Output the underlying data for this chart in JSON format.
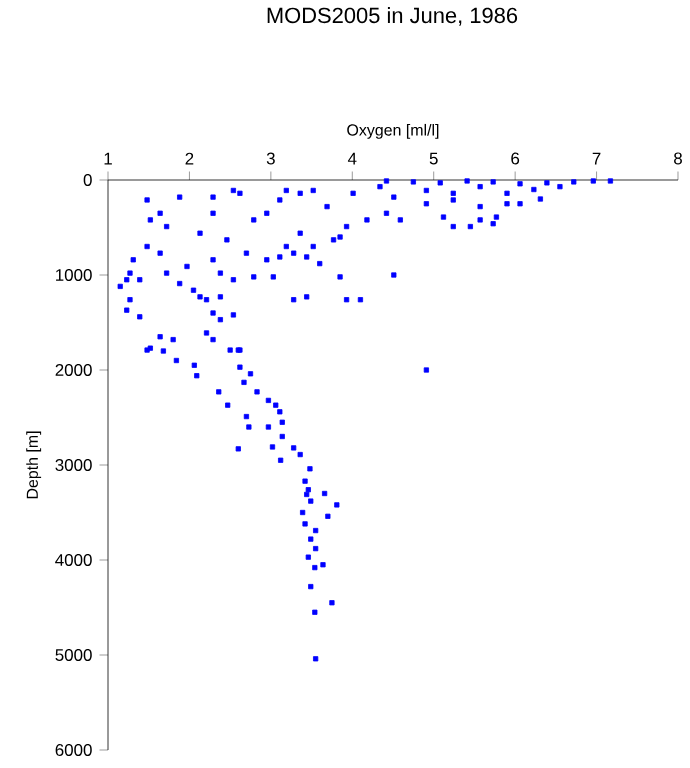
{
  "chart_data": {
    "type": "scatter",
    "title": "MODS2005 in June, 1986",
    "xlabel": "Oxygen [ml/l]",
    "ylabel": "Depth [m]",
    "xlim": [
      1,
      8
    ],
    "xticks": [
      1,
      2,
      3,
      4,
      5,
      6,
      7,
      8
    ],
    "ylim": [
      6000,
      0
    ],
    "yticks": [
      0,
      1000,
      2000,
      3000,
      4000,
      5000,
      6000
    ],
    "grid": false,
    "marker": "square",
    "series": [
      {
        "color": "#0000ff",
        "x": [
          4.42,
          4.75,
          5.08,
          5.41,
          5.73,
          6.06,
          6.39,
          6.72,
          6.96,
          7.17,
          4.34,
          4.91,
          5.24,
          5.57,
          5.9,
          6.23,
          6.55,
          4.51,
          4.91,
          5.24,
          5.57,
          5.9,
          6.31,
          5.12,
          5.24,
          5.45,
          5.57,
          5.73,
          5.77,
          6.06,
          4.18,
          4.42,
          4.59,
          3.93,
          3.85,
          3.69,
          3.36,
          3.19,
          3.52,
          4.01,
          3.11,
          2.95,
          2.79,
          2.62,
          2.54,
          2.29,
          1.88,
          1.48,
          1.64,
          1.52,
          1.72,
          2.29,
          2.13,
          2.46,
          2.7,
          2.29,
          1.97,
          1.64,
          1.48,
          1.31,
          1.27,
          1.23,
          1.15,
          1.39,
          1.72,
          1.88,
          2.05,
          2.13,
          2.21,
          2.38,
          2.29,
          2.54,
          2.38,
          2.21,
          2.29,
          1.64,
          1.8,
          1.48,
          1.27,
          1.39,
          1.23,
          2.79,
          3.03,
          2.95,
          3.11,
          3.28,
          3.44,
          3.6,
          3.85,
          4.51,
          3.28,
          3.44,
          3.93,
          4.1,
          2.38,
          2.54,
          2.62,
          2.5,
          3.77,
          3.52,
          3.19,
          3.36,
          1.52,
          1.68,
          1.84,
          2.06,
          2.09,
          2.36,
          2.47,
          2.6,
          2.62,
          2.67,
          2.75,
          2.83,
          2.7,
          2.73,
          2.6,
          2.97,
          3.06,
          3.11,
          2.97,
          3.14,
          3.14,
          3.02,
          3.28,
          3.36,
          3.12,
          3.48,
          3.42,
          3.46,
          3.44,
          3.49,
          3.66,
          3.81,
          3.39,
          3.7,
          3.42,
          3.55,
          3.49,
          3.55,
          3.46,
          3.64,
          3.54,
          3.49,
          3.75,
          3.54,
          3.55,
          4.91
        ],
        "values": [
          10,
          20,
          30,
          10,
          20,
          40,
          30,
          20,
          10,
          10,
          70,
          110,
          140,
          70,
          140,
          100,
          70,
          180,
          250,
          210,
          280,
          250,
          200,
          390,
          490,
          490,
          420,
          460,
          390,
          250,
          420,
          350,
          420,
          490,
          600,
          280,
          140,
          110,
          110,
          140,
          210,
          350,
          420,
          140,
          110,
          180,
          180,
          210,
          350,
          420,
          490,
          350,
          560,
          630,
          770,
          840,
          910,
          770,
          700,
          840,
          980,
          1050,
          1120,
          1050,
          980,
          1090,
          1160,
          1230,
          1260,
          1230,
          1400,
          1420,
          1470,
          1610,
          1680,
          1650,
          1680,
          1790,
          1260,
          1440,
          1370,
          1020,
          1020,
          840,
          810,
          770,
          810,
          880,
          1020,
          1000,
          1260,
          1230,
          1260,
          1260,
          980,
          1050,
          1790,
          1790,
          630,
          700,
          700,
          560,
          1770,
          1800,
          1900,
          1950,
          2060,
          2230,
          2370,
          1790,
          1970,
          2130,
          2040,
          2230,
          2490,
          2600,
          2830,
          2320,
          2370,
          2440,
          2600,
          2550,
          2700,
          2810,
          2820,
          2890,
          2950,
          3040,
          3170,
          3260,
          3310,
          3380,
          3300,
          3420,
          3500,
          3540,
          3620,
          3690,
          3780,
          3880,
          3970,
          4050,
          4080,
          4280,
          4450,
          4550,
          5040,
          2000
        ]
      }
    ]
  }
}
